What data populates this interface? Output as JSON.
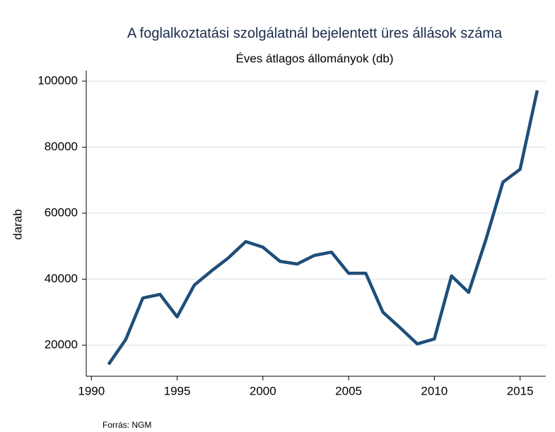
{
  "chart_data": {
    "type": "line",
    "title": "A foglalkoztatási szolgálatnál bejelentett üres állások száma",
    "subtitle": "Éves átlagos állományok (db)",
    "y_label": "darab",
    "source": "Forrás: NGM",
    "x": [
      1991,
      1992,
      1993,
      1994,
      1995,
      1996,
      1997,
      1998,
      1999,
      2000,
      2001,
      2002,
      2003,
      2004,
      2005,
      2006,
      2007,
      2008,
      2009,
      2010,
      2011,
      2012,
      2013,
      2014,
      2015,
      2016
    ],
    "series": [
      {
        "name": "darab",
        "color": "#1f4e79",
        "values": [
          14200,
          21700,
          34300,
          35400,
          28600,
          38200,
          42500,
          46500,
          51400,
          49700,
          45400,
          44600,
          47200,
          48200,
          41800,
          41800,
          30000,
          25300,
          20400,
          21900,
          41000,
          36000,
          51900,
          69400,
          73300,
          97200
        ]
      }
    ],
    "xlim": [
      1989.7,
      2016.5
    ],
    "xticks": [
      1990,
      1995,
      2000,
      2005,
      2010,
      2015
    ],
    "ylim": [
      10600,
      103200
    ],
    "yticks": [
      20000,
      40000,
      60000,
      80000,
      100000
    ],
    "grid": true
  }
}
